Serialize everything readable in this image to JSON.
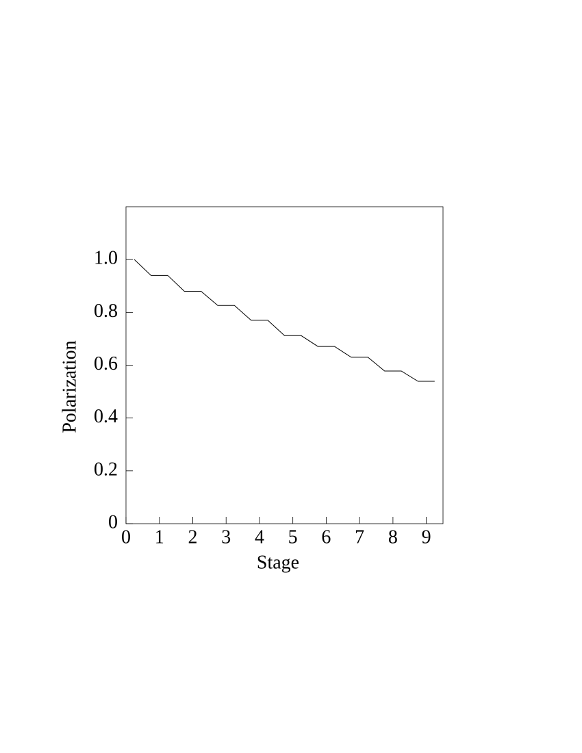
{
  "chart_data": {
    "type": "line",
    "x_label": "Stage",
    "y_label": "Polarization",
    "x": [
      0.25,
      0.75,
      1.25,
      1.75,
      2.25,
      2.75,
      3.25,
      3.75,
      4.25,
      4.75,
      5.25,
      5.75,
      6.25,
      6.75,
      7.25,
      7.75,
      8.25,
      8.75,
      9.25
    ],
    "series": [
      {
        "color": "#000000",
        "values": [
          1.0,
          0.94,
          0.94,
          0.88,
          0.88,
          0.826,
          0.826,
          0.77,
          0.77,
          0.712,
          0.712,
          0.671,
          0.671,
          0.63,
          0.63,
          0.578,
          0.578,
          0.539,
          0.539
        ]
      }
    ],
    "xlim": [
      0,
      9.5
    ],
    "ylim": [
      0,
      1.2
    ],
    "xticks": [
      0,
      1,
      2,
      3,
      4,
      5,
      6,
      7,
      8,
      9
    ],
    "yticks": [
      0,
      0.2,
      0.4,
      0.6,
      0.8,
      {
        "value": 1,
        "label": "1.0"
      }
    ],
    "grid": false
  }
}
